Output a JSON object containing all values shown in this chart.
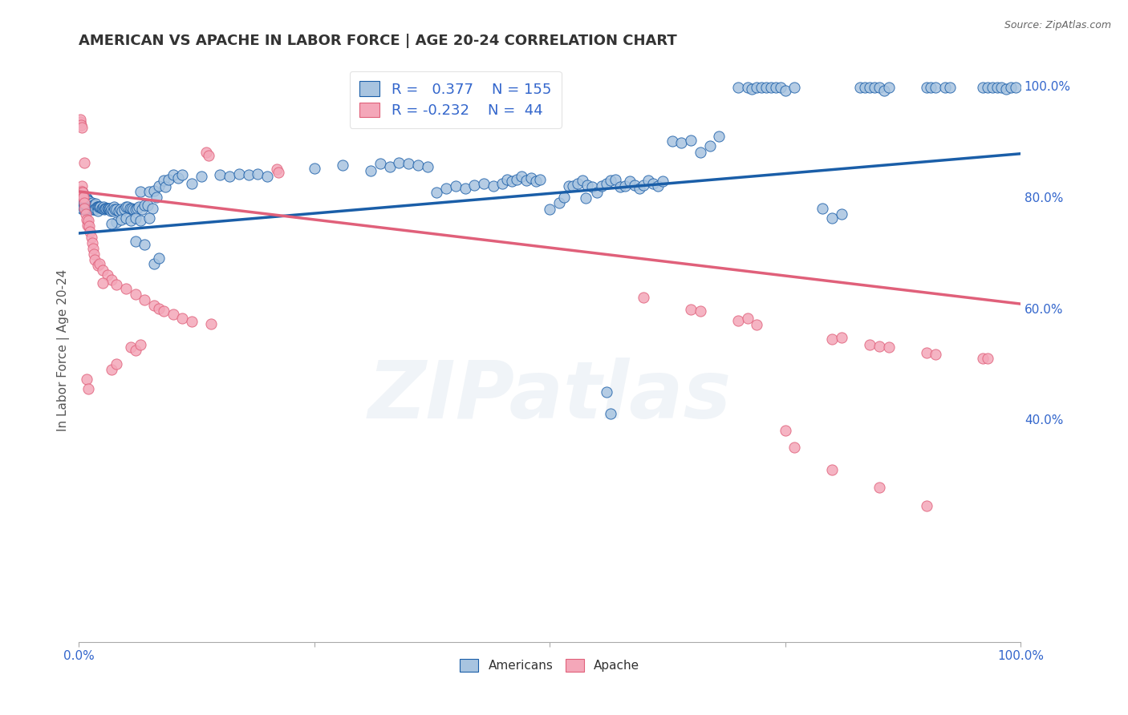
{
  "title": "AMERICAN VS APACHE IN LABOR FORCE | AGE 20-24 CORRELATION CHART",
  "source": "Source: ZipAtlas.com",
  "ylabel": "In Labor Force | Age 20-24",
  "watermark": "ZIPatlas",
  "legend_blue_R": "0.377",
  "legend_blue_N": "155",
  "legend_pink_R": "-0.232",
  "legend_pink_N": "44",
  "blue_color": "#a8c4e0",
  "pink_color": "#f4a7b9",
  "blue_line_color": "#1a5ea8",
  "pink_line_color": "#e0607a",
  "axis_label_color": "#3366cc",
  "blue_scatter": [
    [
      0.002,
      0.785
    ],
    [
      0.002,
      0.795
    ],
    [
      0.002,
      0.8
    ],
    [
      0.002,
      0.792
    ],
    [
      0.003,
      0.788
    ],
    [
      0.003,
      0.797
    ],
    [
      0.003,
      0.78
    ],
    [
      0.003,
      0.793
    ],
    [
      0.004,
      0.785
    ],
    [
      0.004,
      0.795
    ],
    [
      0.004,
      0.8
    ],
    [
      0.004,
      0.808
    ],
    [
      0.004,
      0.778
    ],
    [
      0.005,
      0.788
    ],
    [
      0.005,
      0.793
    ],
    [
      0.005,
      0.782
    ],
    [
      0.005,
      0.8
    ],
    [
      0.006,
      0.785
    ],
    [
      0.006,
      0.793
    ],
    [
      0.006,
      0.778
    ],
    [
      0.006,
      0.8
    ],
    [
      0.007,
      0.79
    ],
    [
      0.007,
      0.782
    ],
    [
      0.007,
      0.795
    ],
    [
      0.007,
      0.778
    ],
    [
      0.008,
      0.79
    ],
    [
      0.008,
      0.783
    ],
    [
      0.008,
      0.798
    ],
    [
      0.009,
      0.787
    ],
    [
      0.009,
      0.779
    ],
    [
      0.009,
      0.795
    ],
    [
      0.01,
      0.788
    ],
    [
      0.01,
      0.78
    ],
    [
      0.01,
      0.793
    ],
    [
      0.011,
      0.785
    ],
    [
      0.011,
      0.793
    ],
    [
      0.012,
      0.785
    ],
    [
      0.012,
      0.778
    ],
    [
      0.013,
      0.788
    ],
    [
      0.013,
      0.78
    ],
    [
      0.014,
      0.79
    ],
    [
      0.014,
      0.782
    ],
    [
      0.015,
      0.785
    ],
    [
      0.015,
      0.778
    ],
    [
      0.016,
      0.785
    ],
    [
      0.016,
      0.778
    ],
    [
      0.017,
      0.785
    ],
    [
      0.017,
      0.778
    ],
    [
      0.018,
      0.788
    ],
    [
      0.018,
      0.78
    ],
    [
      0.019,
      0.782
    ],
    [
      0.02,
      0.783
    ],
    [
      0.02,
      0.776
    ],
    [
      0.021,
      0.783
    ],
    [
      0.022,
      0.782
    ],
    [
      0.023,
      0.783
    ],
    [
      0.024,
      0.78
    ],
    [
      0.025,
      0.78
    ],
    [
      0.026,
      0.783
    ],
    [
      0.027,
      0.778
    ],
    [
      0.028,
      0.78
    ],
    [
      0.029,
      0.78
    ],
    [
      0.03,
      0.78
    ],
    [
      0.031,
      0.78
    ],
    [
      0.032,
      0.778
    ],
    [
      0.033,
      0.78
    ],
    [
      0.034,
      0.775
    ],
    [
      0.035,
      0.778
    ],
    [
      0.036,
      0.775
    ],
    [
      0.037,
      0.782
    ],
    [
      0.038,
      0.778
    ],
    [
      0.04,
      0.778
    ],
    [
      0.042,
      0.775
    ],
    [
      0.044,
      0.778
    ],
    [
      0.046,
      0.776
    ],
    [
      0.048,
      0.778
    ],
    [
      0.05,
      0.783
    ],
    [
      0.052,
      0.783
    ],
    [
      0.054,
      0.78
    ],
    [
      0.056,
      0.78
    ],
    [
      0.058,
      0.778
    ],
    [
      0.06,
      0.778
    ],
    [
      0.062,
      0.78
    ],
    [
      0.064,
      0.782
    ],
    [
      0.065,
      0.81
    ],
    [
      0.067,
      0.778
    ],
    [
      0.07,
      0.785
    ],
    [
      0.073,
      0.785
    ],
    [
      0.075,
      0.81
    ],
    [
      0.078,
      0.78
    ],
    [
      0.04,
      0.755
    ],
    [
      0.045,
      0.76
    ],
    [
      0.05,
      0.762
    ],
    [
      0.055,
      0.758
    ],
    [
      0.06,
      0.762
    ],
    [
      0.08,
      0.812
    ],
    [
      0.082,
      0.8
    ],
    [
      0.085,
      0.82
    ],
    [
      0.09,
      0.83
    ],
    [
      0.092,
      0.818
    ],
    [
      0.095,
      0.832
    ],
    [
      0.1,
      0.84
    ],
    [
      0.105,
      0.835
    ],
    [
      0.11,
      0.84
    ],
    [
      0.12,
      0.825
    ],
    [
      0.13,
      0.838
    ],
    [
      0.15,
      0.84
    ],
    [
      0.16,
      0.838
    ],
    [
      0.17,
      0.842
    ],
    [
      0.18,
      0.84
    ],
    [
      0.19,
      0.842
    ],
    [
      0.2,
      0.838
    ],
    [
      0.035,
      0.752
    ],
    [
      0.065,
      0.758
    ],
    [
      0.075,
      0.762
    ],
    [
      0.08,
      0.68
    ],
    [
      0.085,
      0.69
    ],
    [
      0.06,
      0.72
    ],
    [
      0.07,
      0.715
    ],
    [
      0.5,
      0.778
    ],
    [
      0.51,
      0.79
    ],
    [
      0.515,
      0.8
    ],
    [
      0.52,
      0.82
    ],
    [
      0.525,
      0.82
    ],
    [
      0.53,
      0.825
    ],
    [
      0.535,
      0.83
    ],
    [
      0.538,
      0.798
    ],
    [
      0.54,
      0.822
    ],
    [
      0.545,
      0.818
    ],
    [
      0.55,
      0.808
    ],
    [
      0.555,
      0.82
    ],
    [
      0.56,
      0.825
    ],
    [
      0.565,
      0.83
    ],
    [
      0.57,
      0.832
    ],
    [
      0.575,
      0.818
    ],
    [
      0.58,
      0.82
    ],
    [
      0.585,
      0.828
    ],
    [
      0.59,
      0.822
    ],
    [
      0.595,
      0.816
    ],
    [
      0.6,
      0.822
    ],
    [
      0.605,
      0.83
    ],
    [
      0.61,
      0.825
    ],
    [
      0.615,
      0.82
    ],
    [
      0.62,
      0.828
    ],
    [
      0.38,
      0.808
    ],
    [
      0.39,
      0.815
    ],
    [
      0.4,
      0.82
    ],
    [
      0.41,
      0.815
    ],
    [
      0.42,
      0.822
    ],
    [
      0.43,
      0.825
    ],
    [
      0.44,
      0.82
    ],
    [
      0.45,
      0.825
    ],
    [
      0.63,
      0.9
    ],
    [
      0.64,
      0.898
    ],
    [
      0.65,
      0.902
    ],
    [
      0.66,
      0.88
    ],
    [
      0.67,
      0.892
    ],
    [
      0.68,
      0.91
    ],
    [
      0.7,
      0.998
    ],
    [
      0.71,
      0.998
    ],
    [
      0.715,
      0.995
    ],
    [
      0.72,
      0.998
    ],
    [
      0.725,
      0.998
    ],
    [
      0.73,
      0.998
    ],
    [
      0.735,
      0.998
    ],
    [
      0.74,
      0.998
    ],
    [
      0.745,
      0.998
    ],
    [
      0.75,
      0.992
    ],
    [
      0.76,
      0.998
    ],
    [
      0.83,
      0.998
    ],
    [
      0.835,
      0.998
    ],
    [
      0.84,
      0.998
    ],
    [
      0.845,
      0.998
    ],
    [
      0.85,
      0.998
    ],
    [
      0.855,
      0.992
    ],
    [
      0.86,
      0.998
    ],
    [
      0.9,
      0.998
    ],
    [
      0.905,
      0.998
    ],
    [
      0.91,
      0.998
    ],
    [
      0.92,
      0.998
    ],
    [
      0.925,
      0.998
    ],
    [
      0.25,
      0.852
    ],
    [
      0.28,
      0.858
    ],
    [
      0.31,
      0.848
    ],
    [
      0.32,
      0.86
    ],
    [
      0.33,
      0.855
    ],
    [
      0.34,
      0.862
    ],
    [
      0.35,
      0.86
    ],
    [
      0.36,
      0.858
    ],
    [
      0.37,
      0.855
    ],
    [
      0.455,
      0.832
    ],
    [
      0.46,
      0.828
    ],
    [
      0.465,
      0.832
    ],
    [
      0.47,
      0.838
    ],
    [
      0.475,
      0.83
    ],
    [
      0.48,
      0.835
    ],
    [
      0.485,
      0.828
    ],
    [
      0.49,
      0.832
    ],
    [
      0.56,
      0.45
    ],
    [
      0.565,
      0.41
    ],
    [
      0.79,
      0.78
    ],
    [
      0.8,
      0.762
    ],
    [
      0.81,
      0.77
    ],
    [
      0.96,
      0.998
    ],
    [
      0.965,
      0.998
    ],
    [
      0.97,
      0.998
    ],
    [
      0.975,
      0.998
    ],
    [
      0.98,
      0.998
    ],
    [
      0.985,
      0.995
    ],
    [
      0.99,
      0.998
    ],
    [
      0.995,
      0.998
    ]
  ],
  "pink_scatter": [
    [
      0.002,
      0.812
    ],
    [
      0.003,
      0.82
    ],
    [
      0.003,
      0.81
    ],
    [
      0.004,
      0.808
    ],
    [
      0.004,
      0.8
    ],
    [
      0.005,
      0.8
    ],
    [
      0.006,
      0.79
    ],
    [
      0.006,
      0.78
    ],
    [
      0.007,
      0.77
    ],
    [
      0.008,
      0.76
    ],
    [
      0.009,
      0.75
    ],
    [
      0.01,
      0.758
    ],
    [
      0.011,
      0.748
    ],
    [
      0.012,
      0.738
    ],
    [
      0.013,
      0.728
    ],
    [
      0.014,
      0.718
    ],
    [
      0.015,
      0.708
    ],
    [
      0.016,
      0.698
    ],
    [
      0.017,
      0.688
    ],
    [
      0.02,
      0.678
    ],
    [
      0.022,
      0.68
    ],
    [
      0.025,
      0.668
    ],
    [
      0.03,
      0.66
    ],
    [
      0.035,
      0.652
    ],
    [
      0.04,
      0.642
    ],
    [
      0.05,
      0.635
    ],
    [
      0.06,
      0.625
    ],
    [
      0.07,
      0.615
    ],
    [
      0.08,
      0.605
    ],
    [
      0.085,
      0.6
    ],
    [
      0.09,
      0.595
    ],
    [
      0.1,
      0.59
    ],
    [
      0.11,
      0.582
    ],
    [
      0.12,
      0.577
    ],
    [
      0.14,
      0.572
    ],
    [
      0.001,
      0.935
    ],
    [
      0.001,
      0.94
    ],
    [
      0.002,
      0.93
    ],
    [
      0.003,
      0.925
    ],
    [
      0.006,
      0.862
    ],
    [
      0.008,
      0.472
    ],
    [
      0.01,
      0.455
    ],
    [
      0.025,
      0.645
    ],
    [
      0.035,
      0.49
    ],
    [
      0.04,
      0.5
    ],
    [
      0.055,
      0.53
    ],
    [
      0.06,
      0.525
    ],
    [
      0.065,
      0.535
    ],
    [
      0.21,
      0.85
    ],
    [
      0.212,
      0.845
    ],
    [
      0.135,
      0.88
    ],
    [
      0.138,
      0.875
    ],
    [
      0.6,
      0.62
    ],
    [
      0.65,
      0.598
    ],
    [
      0.66,
      0.595
    ],
    [
      0.7,
      0.578
    ],
    [
      0.71,
      0.582
    ],
    [
      0.72,
      0.57
    ],
    [
      0.8,
      0.545
    ],
    [
      0.81,
      0.548
    ],
    [
      0.84,
      0.535
    ],
    [
      0.85,
      0.532
    ],
    [
      0.86,
      0.53
    ],
    [
      0.9,
      0.52
    ],
    [
      0.91,
      0.518
    ],
    [
      0.96,
      0.51
    ],
    [
      0.965,
      0.51
    ],
    [
      0.75,
      0.38
    ],
    [
      0.76,
      0.35
    ],
    [
      0.8,
      0.31
    ],
    [
      0.85,
      0.278
    ],
    [
      0.9,
      0.245
    ]
  ],
  "blue_line_x": [
    0.0,
    1.0
  ],
  "blue_line_y": [
    0.735,
    0.878
  ],
  "pink_line_x": [
    0.0,
    1.0
  ],
  "pink_line_y": [
    0.81,
    0.608
  ],
  "xlim": [
    0.0,
    1.0
  ],
  "ylim": [
    0.0,
    1.05
  ],
  "xticks": [
    0.0,
    0.25,
    0.5,
    0.75,
    1.0
  ],
  "xticklabels": [
    "0.0%",
    "",
    "",
    "",
    "100.0%"
  ],
  "yticks": [
    0.4,
    0.6,
    0.8,
    1.0
  ],
  "yticklabels_right": [
    "40.0%",
    "60.0%",
    "80.0%",
    "100.0%"
  ],
  "grid_color": "#cccccc",
  "background_color": "#ffffff",
  "title_fontsize": 13,
  "axis_fontsize": 11,
  "legend_fontsize": 13,
  "watermark_alpha": 0.15
}
